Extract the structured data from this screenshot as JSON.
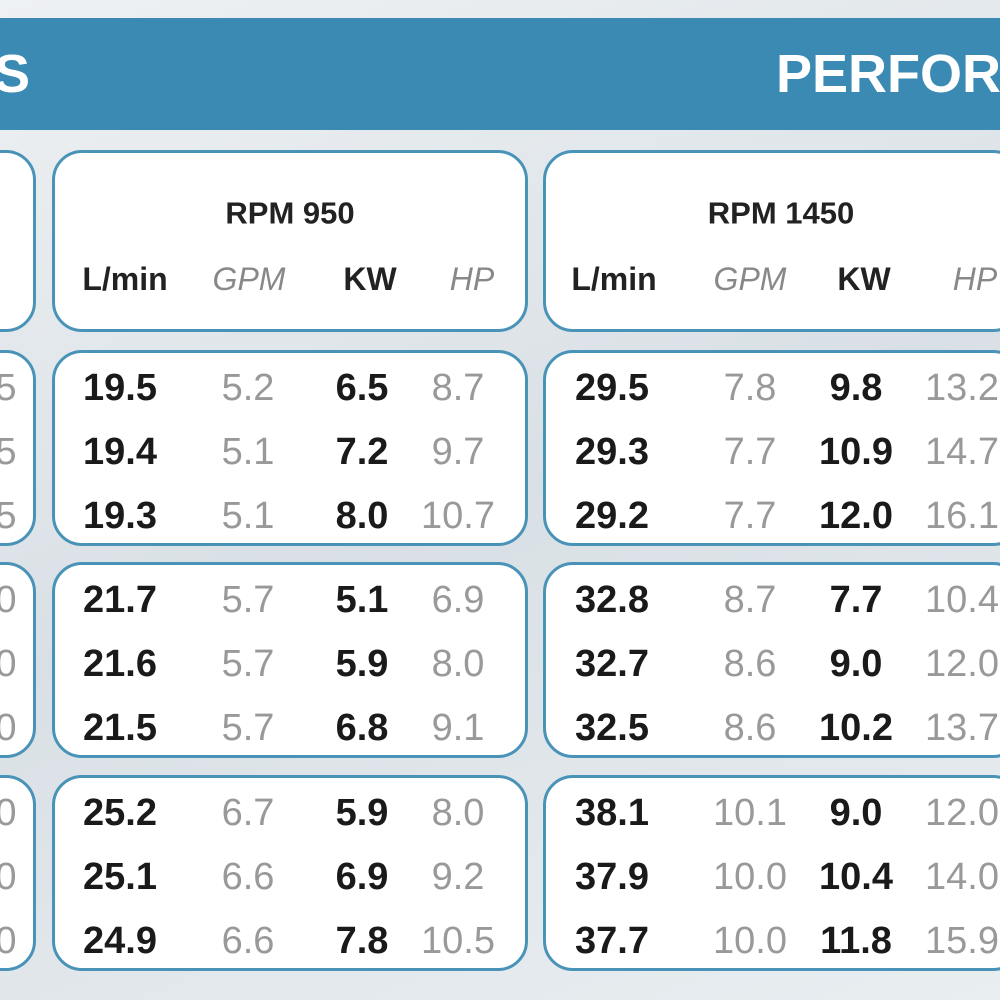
{
  "header": {
    "left": "S",
    "right": "PERFOR"
  },
  "left_fragments": [
    [
      "5",
      "5",
      "5"
    ],
    [
      "0",
      "0",
      "0"
    ],
    [
      "0",
      "0",
      "0"
    ]
  ],
  "groups": [
    {
      "title": "RPM 950",
      "columns": [
        "L/min",
        "GPM",
        "KW",
        "HP"
      ],
      "blocks": [
        [
          [
            "19.5",
            "5.2",
            "6.5",
            "8.7"
          ],
          [
            "19.4",
            "5.1",
            "7.2",
            "9.7"
          ],
          [
            "19.3",
            "5.1",
            "8.0",
            "10.7"
          ]
        ],
        [
          [
            "21.7",
            "5.7",
            "5.1",
            "6.9"
          ],
          [
            "21.6",
            "5.7",
            "5.9",
            "8.0"
          ],
          [
            "21.5",
            "5.7",
            "6.8",
            "9.1"
          ]
        ],
        [
          [
            "25.2",
            "6.7",
            "5.9",
            "8.0"
          ],
          [
            "25.1",
            "6.6",
            "6.9",
            "9.2"
          ],
          [
            "24.9",
            "6.6",
            "7.8",
            "10.5"
          ]
        ]
      ]
    },
    {
      "title": "RPM 1450",
      "columns": [
        "L/min",
        "GPM",
        "KW",
        "HP"
      ],
      "blocks": [
        [
          [
            "29.5",
            "7.8",
            "9.8",
            "13.2"
          ],
          [
            "29.3",
            "7.7",
            "10.9",
            "14.7"
          ],
          [
            "29.2",
            "7.7",
            "12.0",
            "16.1"
          ]
        ],
        [
          [
            "32.8",
            "8.7",
            "7.7",
            "10.4"
          ],
          [
            "32.7",
            "8.6",
            "9.0",
            "12.0"
          ],
          [
            "32.5",
            "8.6",
            "10.2",
            "13.7"
          ]
        ],
        [
          [
            "38.1",
            "10.1",
            "9.0",
            "12.0"
          ],
          [
            "37.9",
            "10.0",
            "10.4",
            "14.0"
          ],
          [
            "37.7",
            "10.0",
            "11.8",
            "15.9"
          ]
        ]
      ]
    }
  ]
}
